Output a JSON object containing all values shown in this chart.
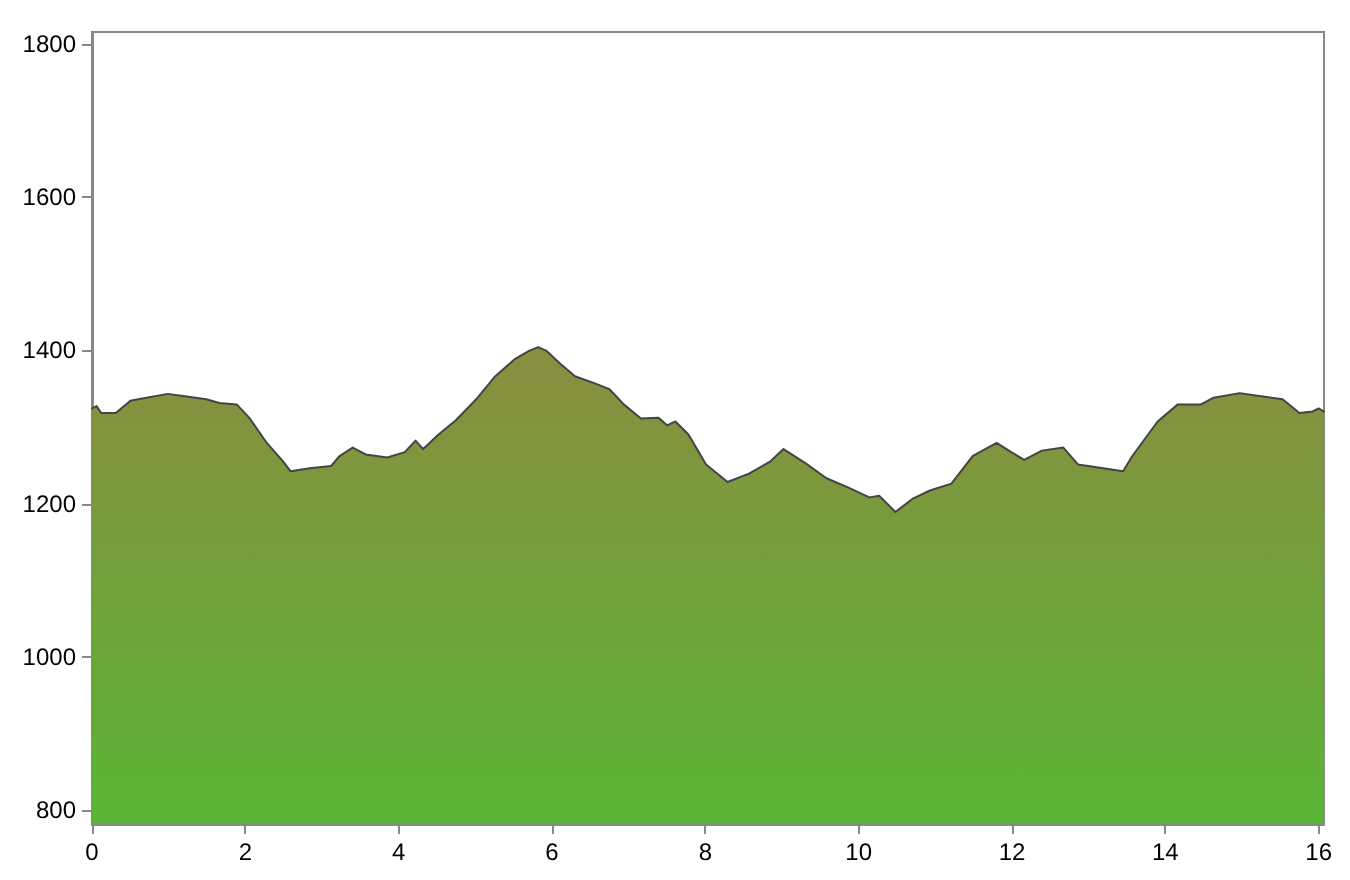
{
  "chart_data": {
    "type": "area",
    "x": [
      0,
      0.06,
      0.12,
      0.31,
      0.5,
      0.71,
      0.99,
      1.21,
      1.49,
      1.66,
      1.89,
      2.05,
      2.28,
      2.5,
      2.59,
      2.84,
      3.12,
      3.23,
      3.4,
      3.57,
      3.85,
      4.08,
      4.22,
      4.32,
      4.52,
      4.75,
      5.03,
      5.25,
      5.51,
      5.7,
      5.82,
      5.93,
      6.1,
      6.3,
      6.55,
      6.75,
      6.94,
      7.16,
      7.39,
      7.5,
      7.61,
      7.78,
      8.01,
      8.29,
      8.57,
      8.85,
      9.02,
      9.3,
      9.58,
      9.86,
      10.14,
      10.27,
      10.48,
      10.7,
      10.93,
      11.21,
      11.49,
      11.8,
      11.99,
      12.16,
      12.39,
      12.67,
      12.86,
      13.06,
      13.45,
      13.57,
      13.9,
      14.16,
      14.46,
      14.63,
      14.97,
      15.25,
      15.53,
      15.75,
      15.92,
      16.0,
      16.07
    ],
    "series": [
      {
        "color": "#76a23b",
        "values": [
          1324,
          1327,
          1318,
          1318,
          1334,
          1338,
          1343,
          1340,
          1336,
          1331,
          1329,
          1312,
          1279,
          1254,
          1242,
          1246,
          1249,
          1262,
          1273,
          1264,
          1260,
          1267,
          1282,
          1271,
          1290,
          1309,
          1338,
          1365,
          1388,
          1399,
          1404,
          1399,
          1383,
          1366,
          1357,
          1349,
          1329,
          1311,
          1312,
          1302,
          1307,
          1290,
          1251,
          1228,
          1239,
          1255,
          1271,
          1253,
          1233,
          1221,
          1208,
          1210,
          1189,
          1206,
          1217,
          1226,
          1262,
          1279,
          1267,
          1257,
          1269,
          1273,
          1251,
          1248,
          1242,
          1262,
          1307,
          1329,
          1329,
          1338,
          1344,
          1340,
          1336,
          1318,
          1320,
          1324,
          1320
        ]
      }
    ],
    "xlim": [
      0,
      16.07
    ],
    "xticks": [
      0,
      2,
      4,
      6,
      8,
      10,
      12,
      14,
      16
    ],
    "ylim": [
      782,
      1815
    ],
    "yticks": [
      800,
      1000,
      1200,
      1400,
      1600,
      1800
    ],
    "marker": "none",
    "line_style": "solid"
  }
}
